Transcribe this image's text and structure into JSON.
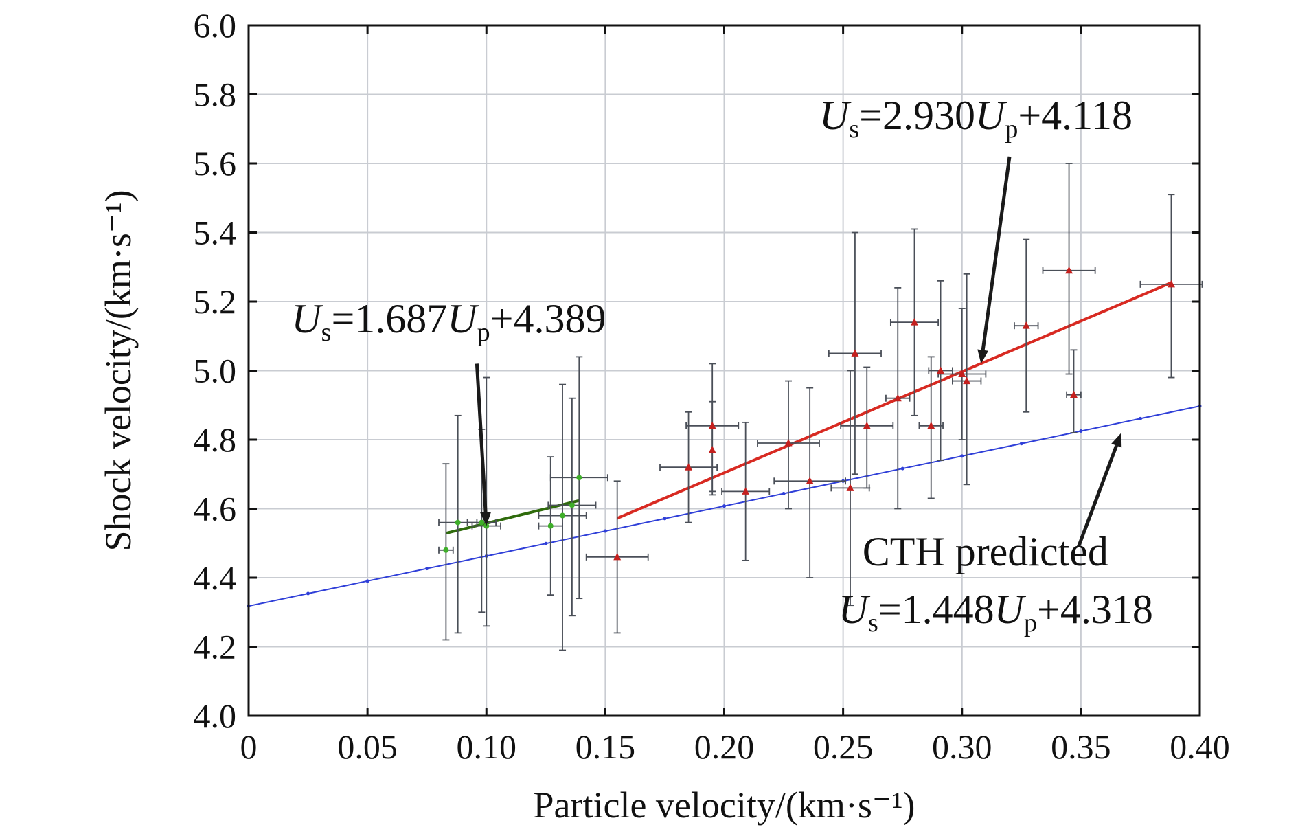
{
  "chart_data": {
    "type": "scatter",
    "xlabel": "Particle velocity/(km·s⁻¹)",
    "ylabel": "Shock velocity/(km·s⁻¹)",
    "xlim": [
      0,
      0.4
    ],
    "ylim": [
      4.0,
      6.0
    ],
    "xticks": [
      "0",
      "0.05",
      "0.10",
      "0.15",
      "0.20",
      "0.25",
      "0.30",
      "0.35",
      "0.40"
    ],
    "yticks": [
      "4.0",
      "4.2",
      "4.4",
      "4.6",
      "4.8",
      "5.0",
      "5.2",
      "5.4",
      "5.6",
      "5.8",
      "6.0"
    ],
    "grid": true,
    "series": [
      {
        "color": "#3fae2a",
        "marker": "circle",
        "points": [
          {
            "x": 0.083,
            "y": 4.48,
            "xerr": 0.003,
            "ylo": 4.22,
            "yhi": 4.73
          },
          {
            "x": 0.088,
            "y": 4.56,
            "xerr": 0.008,
            "ylo": 4.24,
            "yhi": 4.87
          },
          {
            "x": 0.098,
            "y": 4.56,
            "xerr": 0.006,
            "ylo": 4.3,
            "yhi": 4.83
          },
          {
            "x": 0.1,
            "y": 4.55,
            "xerr": 0.006,
            "ylo": 4.26,
            "yhi": 4.98
          },
          {
            "x": 0.127,
            "y": 4.55,
            "xerr": 0.005,
            "ylo": 4.35,
            "yhi": 4.75
          },
          {
            "x": 0.132,
            "y": 4.58,
            "xerr": 0.01,
            "ylo": 4.19,
            "yhi": 4.96
          },
          {
            "x": 0.136,
            "y": 4.61,
            "xerr": 0.01,
            "ylo": 4.29,
            "yhi": 4.92
          },
          {
            "x": 0.139,
            "y": 4.69,
            "xerr": 0.012,
            "ylo": 4.34,
            "yhi": 5.04
          }
        ]
      },
      {
        "color": "#c4201e",
        "marker": "triangle",
        "points": [
          {
            "x": 0.155,
            "y": 4.46,
            "xerr": 0.013,
            "ylo": 4.24,
            "yhi": 4.68
          },
          {
            "x": 0.185,
            "y": 4.72,
            "xerr": 0.012,
            "ylo": 4.56,
            "yhi": 4.88
          },
          {
            "x": 0.195,
            "y": 4.84,
            "xerr": 0.011,
            "ylo": 4.65,
            "yhi": 5.02
          },
          {
            "x": 0.195,
            "y": 4.77,
            "xerr": 0.0,
            "ylo": 4.64,
            "yhi": 4.91
          },
          {
            "x": 0.209,
            "y": 4.65,
            "xerr": 0.01,
            "ylo": 4.45,
            "yhi": 4.85
          },
          {
            "x": 0.227,
            "y": 4.79,
            "xerr": 0.013,
            "ylo": 4.6,
            "yhi": 4.97
          },
          {
            "x": 0.236,
            "y": 4.68,
            "xerr": 0.015,
            "ylo": 4.4,
            "yhi": 4.95
          },
          {
            "x": 0.253,
            "y": 4.66,
            "xerr": 0.008,
            "ylo": 4.32,
            "yhi": 5.0
          },
          {
            "x": 0.255,
            "y": 5.05,
            "xerr": 0.011,
            "ylo": 4.7,
            "yhi": 5.4
          },
          {
            "x": 0.26,
            "y": 4.84,
            "xerr": 0.011,
            "ylo": 4.66,
            "yhi": 5.01
          },
          {
            "x": 0.273,
            "y": 4.92,
            "xerr": 0.005,
            "ylo": 4.6,
            "yhi": 5.24
          },
          {
            "x": 0.28,
            "y": 5.14,
            "xerr": 0.01,
            "ylo": 4.87,
            "yhi": 5.41
          },
          {
            "x": 0.287,
            "y": 4.84,
            "xerr": 0.005,
            "ylo": 4.63,
            "yhi": 5.04
          },
          {
            "x": 0.291,
            "y": 5.0,
            "xerr": 0.005,
            "ylo": 4.74,
            "yhi": 5.26
          },
          {
            "x": 0.3,
            "y": 4.99,
            "xerr": 0.01,
            "ylo": 4.8,
            "yhi": 5.18
          },
          {
            "x": 0.302,
            "y": 4.97,
            "xerr": 0.006,
            "ylo": 4.67,
            "yhi": 5.28
          },
          {
            "x": 0.327,
            "y": 5.13,
            "xerr": 0.005,
            "ylo": 4.88,
            "yhi": 5.38
          },
          {
            "x": 0.345,
            "y": 5.29,
            "xerr": 0.011,
            "ylo": 4.99,
            "yhi": 5.6
          },
          {
            "x": 0.347,
            "y": 4.93,
            "xerr": 0.003,
            "ylo": 4.82,
            "yhi": 5.06
          },
          {
            "x": 0.388,
            "y": 5.25,
            "xerr": 0.013,
            "ylo": 4.98,
            "yhi": 5.51
          }
        ]
      }
    ],
    "fits": [
      {
        "color": "#2f6b0c",
        "slope": 1.687,
        "intercept": 4.389,
        "x_range": [
          0.083,
          0.139
        ],
        "markers": false
      },
      {
        "color": "#d82a22",
        "slope": 2.93,
        "intercept": 4.118,
        "x_range": [
          0.155,
          0.388
        ],
        "markers": false
      },
      {
        "color": "#2f3fd8",
        "slope": 1.448,
        "intercept": 4.318,
        "x_range": [
          0.0,
          0.4
        ],
        "markers": true,
        "marker_step": 0.025
      }
    ],
    "annotations": [
      {
        "text_parts": [
          "U",
          "s",
          "=2.930",
          "U",
          "p",
          "+4.118"
        ],
        "anchor_x": 0.24,
        "anchor_y": 5.7,
        "arrow_from": [
          0.32,
          5.62
        ],
        "arrow_to": [
          0.308,
          5.02
        ]
      },
      {
        "text_parts": [
          "U",
          "s",
          "=1.687",
          "U",
          "p",
          "+4.389"
        ],
        "anchor_x": 0.018,
        "anchor_y": 5.11,
        "arrow_from": [
          0.096,
          5.02
        ],
        "arrow_to": [
          0.1,
          4.55
        ]
      },
      {
        "line1": "CTH predicted",
        "text_parts": [
          "U",
          "s",
          "=1.448",
          "U",
          "p",
          "+4.318"
        ],
        "anchor_x": 0.248,
        "anchor_y": 4.4,
        "arrow_from": [
          0.349,
          4.49
        ],
        "arrow_to": [
          0.367,
          4.82
        ]
      }
    ]
  }
}
